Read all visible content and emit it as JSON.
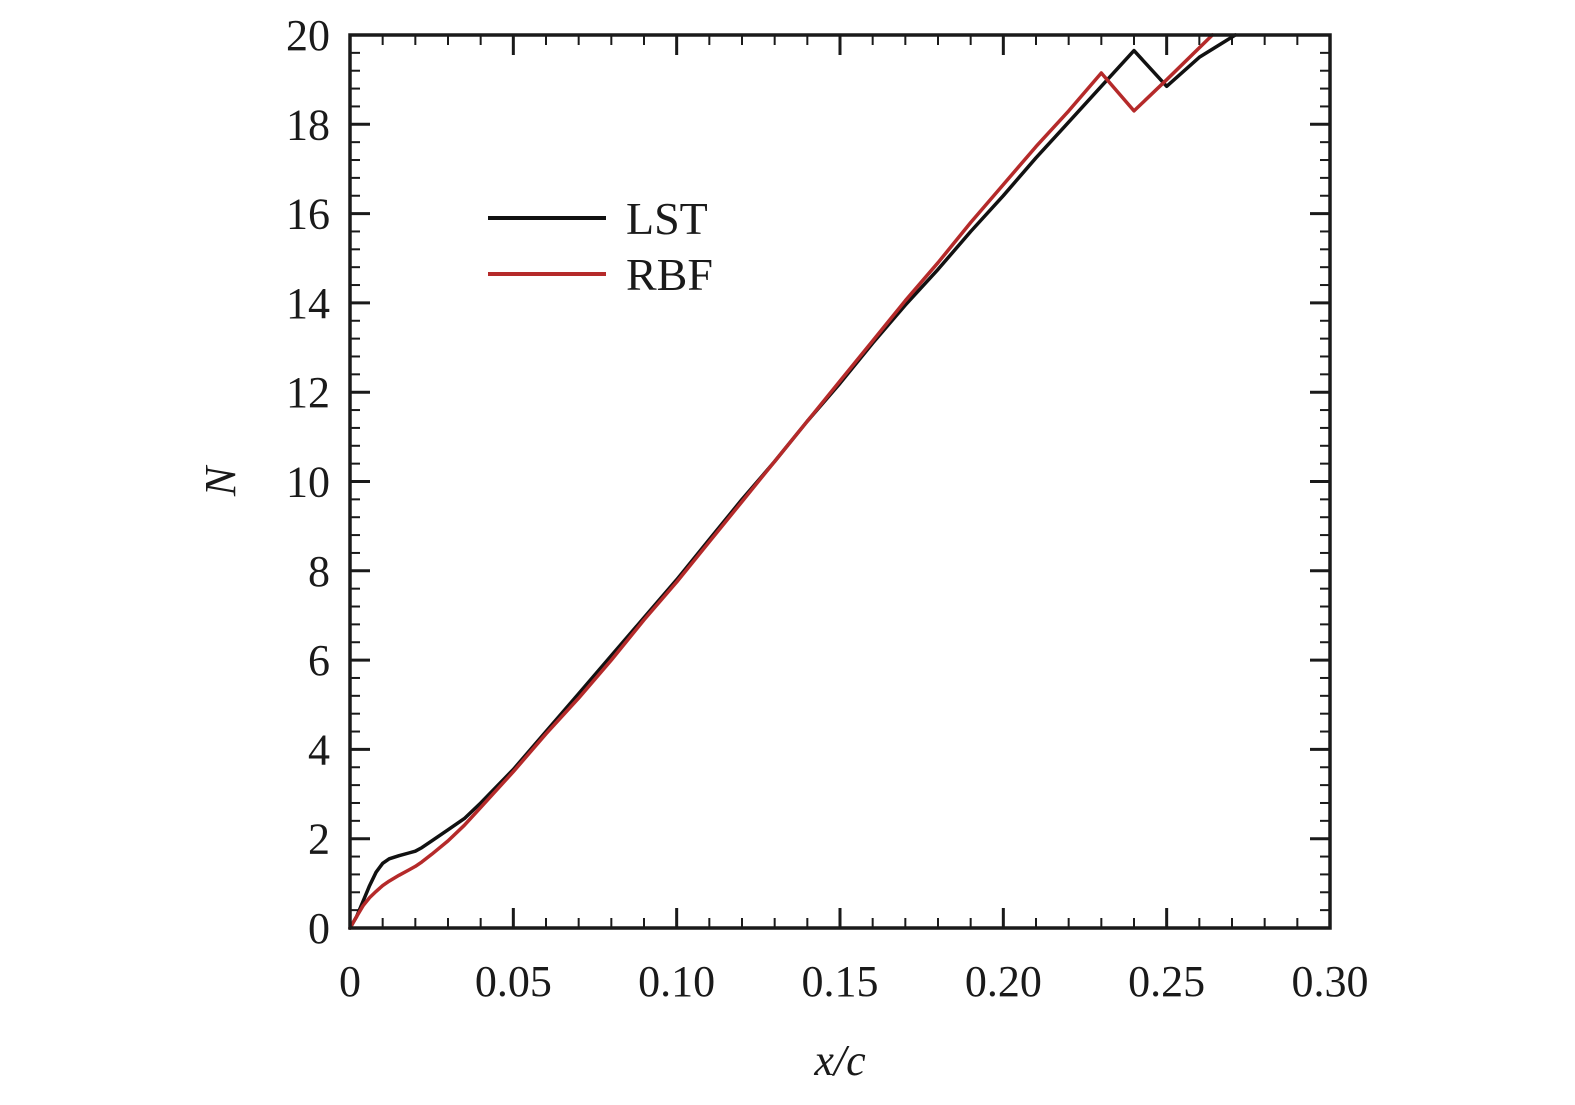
{
  "chart_data": {
    "type": "line",
    "xlabel": "x/c",
    "ylabel": "N",
    "xlim": [
      0,
      0.3
    ],
    "ylim": [
      0,
      20
    ],
    "xticks": [
      0,
      0.05,
      0.1,
      0.15,
      0.2,
      0.25,
      0.3
    ],
    "xtick_labels": [
      "0",
      "0.05",
      "0.10",
      "0.15",
      "0.20",
      "0.25",
      "0.30"
    ],
    "yticks": [
      0,
      2,
      4,
      6,
      8,
      10,
      12,
      14,
      16,
      18,
      20
    ],
    "ytick_labels": [
      "0",
      "2",
      "4",
      "6",
      "8",
      "10",
      "12",
      "14",
      "16",
      "18",
      "20"
    ],
    "grid": false,
    "legend_position": "top-left",
    "series": [
      {
        "name": "LST",
        "color": "#111111",
        "x": [
          0,
          0.002,
          0.004,
          0.006,
          0.008,
          0.01,
          0.012,
          0.015,
          0.018,
          0.02,
          0.022,
          0.025,
          0.03,
          0.035,
          0.04,
          0.05,
          0.06,
          0.07,
          0.08,
          0.09,
          0.1,
          0.11,
          0.12,
          0.13,
          0.14,
          0.15,
          0.16,
          0.17,
          0.18,
          0.19,
          0.2,
          0.21,
          0.22,
          0.23,
          0.24,
          0.25,
          0.26,
          0.271
        ],
        "y": [
          0,
          0.25,
          0.6,
          0.95,
          1.25,
          1.45,
          1.55,
          1.62,
          1.68,
          1.72,
          1.8,
          1.95,
          2.2,
          2.45,
          2.8,
          3.55,
          4.4,
          5.25,
          6.1,
          6.95,
          7.8,
          8.7,
          9.6,
          10.45,
          11.35,
          12.2,
          13.1,
          13.95,
          14.75,
          15.6,
          16.4,
          17.25,
          18.05,
          18.85,
          19.65,
          18.85,
          19.5,
          20.0
        ]
      },
      {
        "name": "RBF",
        "color": "#b52a2a",
        "x": [
          0,
          0.002,
          0.004,
          0.006,
          0.008,
          0.01,
          0.012,
          0.015,
          0.018,
          0.02,
          0.022,
          0.025,
          0.03,
          0.035,
          0.04,
          0.05,
          0.06,
          0.07,
          0.08,
          0.09,
          0.1,
          0.11,
          0.12,
          0.13,
          0.14,
          0.15,
          0.16,
          0.17,
          0.18,
          0.19,
          0.2,
          0.21,
          0.22,
          0.23,
          0.24,
          0.25,
          0.264
        ],
        "y": [
          0,
          0.25,
          0.5,
          0.68,
          0.82,
          0.95,
          1.05,
          1.18,
          1.3,
          1.38,
          1.48,
          1.65,
          1.95,
          2.3,
          2.7,
          3.5,
          4.35,
          5.15,
          6.0,
          6.9,
          7.75,
          8.65,
          9.55,
          10.45,
          11.35,
          12.25,
          13.15,
          14.05,
          14.9,
          15.8,
          16.65,
          17.5,
          18.3,
          19.15,
          18.3,
          19.0,
          20.0
        ]
      }
    ]
  }
}
